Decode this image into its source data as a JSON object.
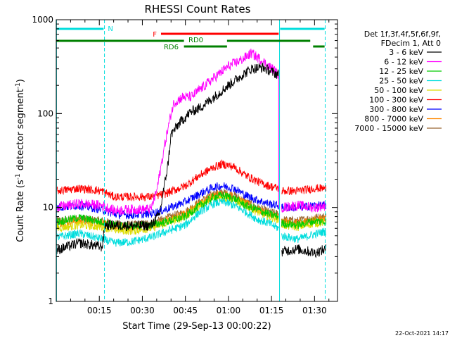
{
  "chart_data": {
    "type": "line",
    "title": "RHESSI Count Rates",
    "xlabel": "Start Time (29-Sep-13 00:00:22)",
    "ylabel_main": "Count Rate (s",
    "ylabel_sup1": "-1",
    "ylabel_mid": " detector segment",
    "ylabel_sup2": "-1",
    "ylabel_end": ")",
    "x_unit": "minutes since 00:00",
    "xlim": [
      0,
      98
    ],
    "ylim": [
      1,
      1000
    ],
    "y_scale": "log",
    "x_ticks": [
      {
        "value": 15,
        "label": "00:15"
      },
      {
        "value": 30,
        "label": "00:30"
      },
      {
        "value": 45,
        "label": "00:45"
      },
      {
        "value": 60,
        "label": "01:00"
      },
      {
        "value": 75,
        "label": "01:15"
      },
      {
        "value": 90,
        "label": "01:30"
      }
    ],
    "y_ticks": [
      {
        "value": 1,
        "label": "1"
      },
      {
        "value": 10,
        "label": "10"
      },
      {
        "value": 100,
        "label": "100"
      },
      {
        "value": 1000,
        "label": "1000"
      }
    ],
    "legend_header": [
      "Det 1f,3f,4f,5f,6f,9f,",
      "FDecim 1, Att 0"
    ],
    "legend_position": "right",
    "series": [
      {
        "name": "3 - 6 keV",
        "color": "#000000",
        "x": [
          0,
          8,
          16,
          17,
          26,
          33,
          36,
          39,
          40,
          43,
          47,
          50,
          55,
          60,
          65,
          68,
          72,
          74,
          76,
          77.5
        ],
        "y": [
          3.5,
          4.2,
          3.8,
          6.5,
          6.4,
          6.4,
          8.5,
          30,
          60,
          80,
          105,
          115,
          150,
          200,
          260,
          300,
          310,
          290,
          270,
          260
        ],
        "x2": [
          78.5,
          84,
          90,
          94
        ],
        "y2": [
          3.4,
          3.6,
          3.3,
          3.6
        ]
      },
      {
        "name": "6 - 12 keV",
        "color": "#ff00ff",
        "x": [
          0,
          8,
          16,
          20,
          26,
          33,
          35,
          38,
          40,
          41,
          44,
          47,
          50,
          55,
          60,
          65,
          68,
          71,
          74,
          76,
          77.5
        ],
        "y": [
          10,
          11,
          10.5,
          9.3,
          9.5,
          9.6,
          15,
          50,
          100,
          130,
          150,
          150,
          180,
          240,
          320,
          380,
          440,
          380,
          320,
          290,
          250
        ],
        "x2": [
          78.5,
          84,
          90,
          94
        ],
        "y2": [
          10,
          10.5,
          10,
          10.5
        ]
      },
      {
        "name": "12 - 25 keV",
        "color": "#00cc00",
        "x": [
          0,
          8,
          16,
          20,
          26,
          33,
          38,
          45,
          50,
          55,
          58,
          62,
          66,
          70,
          74,
          77.5
        ],
        "y": [
          7.0,
          7.8,
          7.0,
          6.5,
          6.3,
          6.5,
          7.0,
          8.0,
          10.5,
          13.0,
          13.5,
          12.5,
          10.5,
          9.5,
          8.5,
          8.0
        ],
        "x2": [
          78.5,
          84,
          90,
          94
        ],
        "y2": [
          6.8,
          6.5,
          7.2,
          7.0
        ]
      },
      {
        "name": "25 - 50 keV",
        "color": "#00dddd",
        "x": [
          0,
          8,
          16,
          20,
          26,
          33,
          38,
          45,
          50,
          55,
          58,
          62,
          66,
          70,
          74,
          77.5
        ],
        "y": [
          4.8,
          5.3,
          4.6,
          4.2,
          4.3,
          4.8,
          5.5,
          6.5,
          9.0,
          11.0,
          11.5,
          10.5,
          9.0,
          7.5,
          6.8,
          6.0
        ],
        "x2": [
          78.5,
          84,
          90,
          94
        ],
        "y2": [
          5.0,
          4.6,
          5.2,
          5.6
        ]
      },
      {
        "name": "50 - 100 keV",
        "color": "#dddd00",
        "x": [
          0,
          8,
          16,
          20,
          26,
          33,
          38,
          45,
          50,
          55,
          58,
          62,
          66,
          70,
          74,
          77.5
        ],
        "y": [
          6.0,
          6.5,
          6.2,
          5.8,
          5.6,
          6.0,
          6.8,
          8.0,
          10.5,
          12.5,
          12.8,
          12.0,
          10.5,
          9.0,
          8.0,
          7.5
        ],
        "x2": [
          78.5,
          84,
          90,
          94
        ],
        "y2": [
          6.5,
          6.2,
          6.8,
          7.0
        ]
      },
      {
        "name": "100 - 300 keV",
        "color": "#ff0000",
        "x": [
          0,
          8,
          16,
          20,
          26,
          33,
          38,
          45,
          50,
          55,
          58,
          62,
          66,
          70,
          74,
          77.5
        ],
        "y": [
          15,
          16,
          15,
          13,
          13,
          13,
          14,
          17,
          22,
          27,
          29,
          27,
          22,
          19,
          17,
          16
        ],
        "x2": [
          78.5,
          84,
          90,
          94
        ],
        "y2": [
          15,
          15,
          16,
          16
        ]
      },
      {
        "name": "300 - 800 keV",
        "color": "#0000ff",
        "x": [
          0,
          8,
          16,
          20,
          26,
          33,
          38,
          45,
          50,
          55,
          58,
          62,
          66,
          70,
          74,
          77.5
        ],
        "y": [
          10,
          10.5,
          9.5,
          8.5,
          8.3,
          8.6,
          9.5,
          11.5,
          14.0,
          16.5,
          17.0,
          16.0,
          13.5,
          12.0,
          11.0,
          10.5
        ],
        "x2": [
          78.5,
          84,
          90,
          94
        ],
        "y2": [
          10,
          10,
          10.5,
          10.5
        ]
      },
      {
        "name": "800 - 7000 keV",
        "color": "#ff8800",
        "x": [
          0,
          8,
          16,
          20,
          26,
          33,
          38,
          45,
          50,
          55,
          58,
          62,
          66,
          70,
          74,
          77.5
        ],
        "y": [
          6.8,
          7.2,
          6.8,
          6.3,
          6.1,
          6.4,
          7.2,
          8.5,
          11.0,
          13.5,
          14.0,
          13.0,
          11.0,
          9.5,
          8.5,
          8.0
        ],
        "x2": [
          78.5,
          84,
          90,
          94
        ],
        "y2": [
          7.0,
          6.8,
          7.4,
          7.6
        ]
      },
      {
        "name": "7000 - 15000 keV",
        "color": "#996633",
        "x": [
          0,
          8,
          16,
          20,
          26,
          33,
          38,
          45,
          50,
          55,
          58,
          62,
          66,
          70,
          74,
          77.5
        ],
        "y": [
          7.2,
          7.6,
          7.2,
          6.7,
          6.5,
          6.8,
          7.6,
          9.0,
          11.5,
          14.0,
          14.5,
          13.5,
          11.5,
          10.0,
          9.0,
          8.5
        ],
        "x2": [
          78.5,
          84,
          90,
          94
        ],
        "y2": [
          7.4,
          7.2,
          7.8,
          8.0
        ]
      }
    ],
    "vlines": [
      {
        "x": 0.1,
        "style": "solid",
        "color": "#00dddd"
      },
      {
        "x": 16.8,
        "style": "dashed",
        "color": "#00dddd"
      },
      {
        "x": 77.8,
        "style": "solid",
        "color": "#00dddd"
      },
      {
        "x": 93.7,
        "style": "dashed",
        "color": "#00dddd"
      }
    ],
    "flag_bars": [
      {
        "label": "N",
        "color": "#00dddd",
        "level": 0,
        "segments": [
          [
            0,
            16.5
          ],
          [
            78,
            93.5
          ]
        ]
      },
      {
        "label": "F",
        "color": "#ff0000",
        "level": 1,
        "segments": [
          [
            36.5,
            77.5
          ]
        ]
      },
      {
        "label": "RD0",
        "color": "#008000",
        "level": 2,
        "segments": [
          [
            0,
            44.5
          ],
          [
            59.5,
            88.5
          ]
        ]
      },
      {
        "label": "RD6",
        "color": "#008000",
        "level": 3,
        "segments": [
          [
            44.5,
            59.5
          ],
          [
            89.5,
            93.5
          ]
        ]
      }
    ],
    "timestamp": "22-Oct-2021 14:17"
  }
}
